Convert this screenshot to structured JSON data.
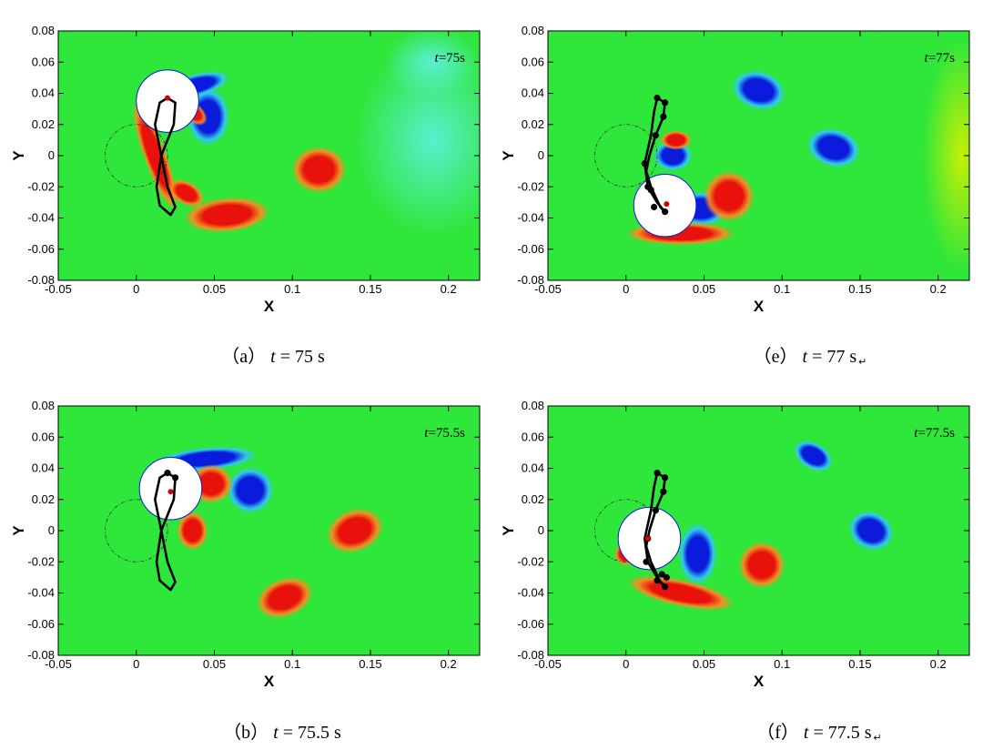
{
  "chart_data": [
    {
      "type": "heatmap",
      "panel_id": "a",
      "caption": {
        "label": "（a）",
        "var": "t",
        "rest": " = 75 s",
        "mark": ""
      },
      "time_label": {
        "var": "t",
        "rest": "=75s"
      },
      "xlabel": "X",
      "ylabel": "Y",
      "xlim": [
        -0.05,
        0.22
      ],
      "ylim": [
        -0.08,
        0.08
      ],
      "x_ticks": [
        "-0.05",
        "0",
        "0.05",
        "0.1",
        "0.15",
        "0.2"
      ],
      "y_ticks": [
        "-0.08",
        "-0.06",
        "-0.04",
        "-0.02",
        "0",
        "0.02",
        "0.04",
        "0.06",
        "0.08"
      ],
      "cylinder": {
        "center": [
          0.02,
          0.035
        ],
        "radius": 0.02
      },
      "reference_circle": {
        "center": [
          0,
          0
        ],
        "radius": 0.02
      },
      "trajectory": [
        [
          0.02,
          0.037
        ],
        [
          0.025,
          0.034
        ],
        [
          0.024,
          0.02
        ],
        [
          0.016,
          0
        ],
        [
          0.02,
          -0.02
        ],
        [
          0.025,
          -0.033
        ],
        [
          0.022,
          -0.038
        ],
        [
          0.015,
          -0.032
        ],
        [
          0.013,
          -0.02
        ],
        [
          0.016,
          0
        ],
        [
          0.012,
          0.02
        ],
        [
          0.015,
          0.034
        ],
        [
          0.02,
          0.037
        ]
      ],
      "markers": [],
      "red_dot": [
        0.02,
        0.037
      ],
      "vortices": [
        {
          "sign": "neg",
          "x": 0.046,
          "y": 0.025,
          "rx": 0.011,
          "ry": 0.015,
          "rot": 0
        },
        {
          "sign": "neg",
          "x": 0.038,
          "y": 0.045,
          "rx": 0.018,
          "ry": 0.006,
          "rot": -15
        },
        {
          "sign": "pos",
          "x": 0.117,
          "y": -0.009,
          "rx": 0.014,
          "ry": 0.012,
          "rot": 0
        },
        {
          "sign": "pos",
          "x": 0.058,
          "y": -0.038,
          "rx": 0.022,
          "ry": 0.009,
          "rot": -5
        },
        {
          "sign": "pos",
          "x": 0.012,
          "y": 0.0,
          "rx": 0.006,
          "ry": 0.03,
          "rot": -20
        },
        {
          "sign": "pos",
          "x": 0.032,
          "y": -0.024,
          "rx": 0.01,
          "ry": 0.006,
          "rot": 30
        },
        {
          "sign": "pos",
          "x": 0.036,
          "y": 0.028,
          "rx": 0.009,
          "ry": 0.005,
          "rot": 40
        },
        {
          "sign": "weakneg",
          "x": 0.19,
          "y": 0.01,
          "rx": 0.04,
          "ry": 0.05,
          "rot": 0
        },
        {
          "sign": "weakneg",
          "x": 0.19,
          "y": 0.06,
          "rx": 0.025,
          "ry": 0.018,
          "rot": 0
        }
      ]
    },
    {
      "type": "heatmap",
      "panel_id": "e",
      "caption": {
        "label": "（e）",
        "var": "t",
        "rest": " = 77 s",
        "mark": "↵"
      },
      "time_label": {
        "var": "t",
        "rest": "=77s"
      },
      "xlabel": "X",
      "ylabel": "Y",
      "xlim": [
        -0.05,
        0.22
      ],
      "ylim": [
        -0.08,
        0.08
      ],
      "x_ticks": [
        "-0.05",
        "0",
        "0.05",
        "0.1",
        "0.15",
        "0.2"
      ],
      "y_ticks": [
        "-0.08",
        "-0.06",
        "-0.04",
        "-0.02",
        "0",
        "0.02",
        "0.04",
        "0.06",
        "0.08"
      ],
      "cylinder": {
        "center": [
          0.025,
          -0.032
        ],
        "radius": 0.02
      },
      "reference_circle": {
        "center": [
          0,
          0
        ],
        "radius": 0.02
      },
      "trajectory": [
        [
          0.02,
          0.037
        ],
        [
          0.025,
          0.034
        ],
        [
          0.024,
          0.025
        ],
        [
          0.019,
          0.013
        ],
        [
          0.015,
          0.0
        ],
        [
          0.013,
          -0.01
        ],
        [
          0.016,
          -0.02
        ],
        [
          0.022,
          -0.033
        ],
        [
          0.025,
          -0.036
        ],
        [
          0.02,
          -0.03
        ],
        [
          0.014,
          -0.02
        ],
        [
          0.012,
          -0.005
        ],
        [
          0.016,
          0.013
        ],
        [
          0.018,
          0.028
        ],
        [
          0.02,
          0.037
        ]
      ],
      "markers": [
        [
          0.02,
          0.037
        ],
        [
          0.025,
          0.034
        ],
        [
          0.024,
          0.025
        ],
        [
          0.019,
          0.013
        ],
        [
          0.012,
          -0.005
        ],
        [
          0.014,
          -0.02
        ],
        [
          0.018,
          -0.033
        ],
        [
          0.025,
          -0.036
        ],
        [
          0.016,
          -0.022
        ]
      ],
      "red_dot": [
        0.026,
        -0.031
      ],
      "vortices": [
        {
          "sign": "neg",
          "x": 0.085,
          "y": 0.042,
          "rx": 0.014,
          "ry": 0.01,
          "rot": 15
        },
        {
          "sign": "neg",
          "x": 0.133,
          "y": 0.005,
          "rx": 0.014,
          "ry": 0.01,
          "rot": 15
        },
        {
          "sign": "neg",
          "x": 0.03,
          "y": 0.0,
          "rx": 0.01,
          "ry": 0.008,
          "rot": 0
        },
        {
          "sign": "neg",
          "x": 0.048,
          "y": -0.034,
          "rx": 0.014,
          "ry": 0.009,
          "rot": 0
        },
        {
          "sign": "pos",
          "x": 0.066,
          "y": -0.026,
          "rx": 0.013,
          "ry": 0.013,
          "rot": 0
        },
        {
          "sign": "pos",
          "x": 0.035,
          "y": -0.05,
          "rx": 0.028,
          "ry": 0.006,
          "rot": 0
        },
        {
          "sign": "pos",
          "x": 0.032,
          "y": 0.01,
          "rx": 0.008,
          "ry": 0.005,
          "rot": 0
        },
        {
          "sign": "weakpos",
          "x": 0.215,
          "y": 0.0,
          "rx": 0.02,
          "ry": 0.06,
          "rot": 0
        }
      ]
    },
    {
      "type": "heatmap",
      "panel_id": "b",
      "caption": {
        "label": "（b）",
        "var": "t",
        "rest": " = 75.5 s",
        "mark": ""
      },
      "time_label": {
        "var": "t",
        "rest": "=75.5s"
      },
      "xlabel": "X",
      "ylabel": "Y",
      "xlim": [
        -0.05,
        0.22
      ],
      "ylim": [
        -0.08,
        0.08
      ],
      "x_ticks": [
        "-0.05",
        "0",
        "0.05",
        "0.1",
        "0.15",
        "0.2"
      ],
      "y_ticks": [
        "-0.08",
        "-0.06",
        "-0.04",
        "-0.02",
        "0",
        "0.02",
        "0.04",
        "0.06",
        "0.08"
      ],
      "cylinder": {
        "center": [
          0.022,
          0.027
        ],
        "radius": 0.02
      },
      "reference_circle": {
        "center": [
          0,
          0
        ],
        "radius": 0.02
      },
      "trajectory": [
        [
          0.02,
          0.037
        ],
        [
          0.025,
          0.034
        ],
        [
          0.024,
          0.02
        ],
        [
          0.016,
          0
        ],
        [
          0.02,
          -0.02
        ],
        [
          0.025,
          -0.033
        ],
        [
          0.022,
          -0.038
        ],
        [
          0.015,
          -0.032
        ],
        [
          0.013,
          -0.02
        ],
        [
          0.016,
          0
        ],
        [
          0.012,
          0.02
        ],
        [
          0.015,
          0.034
        ],
        [
          0.02,
          0.037
        ]
      ],
      "markers": [
        [
          0.02,
          0.037
        ],
        [
          0.025,
          0.034
        ]
      ],
      "red_dot": [
        0.022,
        0.025
      ],
      "vortices": [
        {
          "sign": "neg",
          "x": 0.073,
          "y": 0.026,
          "rx": 0.012,
          "ry": 0.012,
          "rot": 0
        },
        {
          "sign": "neg",
          "x": 0.045,
          "y": 0.046,
          "rx": 0.026,
          "ry": 0.006,
          "rot": -5
        },
        {
          "sign": "pos",
          "x": 0.14,
          "y": 0.0,
          "rx": 0.015,
          "ry": 0.011,
          "rot": -20
        },
        {
          "sign": "pos",
          "x": 0.095,
          "y": -0.043,
          "rx": 0.015,
          "ry": 0.01,
          "rot": -20
        },
        {
          "sign": "pos",
          "x": 0.036,
          "y": 0.0,
          "rx": 0.008,
          "ry": 0.01,
          "rot": 0
        },
        {
          "sign": "pos",
          "x": 0.048,
          "y": 0.03,
          "rx": 0.011,
          "ry": 0.01,
          "rot": 0
        }
      ]
    },
    {
      "type": "heatmap",
      "panel_id": "f",
      "caption": {
        "label": "（f）",
        "var": "t",
        "rest": " = 77.5 s",
        "mark": "↵"
      },
      "time_label": {
        "var": "t",
        "rest": "=77.5s"
      },
      "xlabel": "X",
      "ylabel": "Y",
      "xlim": [
        -0.05,
        0.22
      ],
      "ylim": [
        -0.08,
        0.08
      ],
      "x_ticks": [
        "-0.05",
        "0",
        "0.05",
        "0.1",
        "0.15",
        "0.2"
      ],
      "y_ticks": [
        "-0.08",
        "-0.06",
        "-0.04",
        "-0.02",
        "0",
        "0.02",
        "0.04",
        "0.06",
        "0.08"
      ],
      "cylinder": {
        "center": [
          0.015,
          -0.005
        ],
        "radius": 0.02
      },
      "reference_circle": {
        "center": [
          0,
          0
        ],
        "radius": 0.02
      },
      "trajectory": [
        [
          0.02,
          0.037
        ],
        [
          0.025,
          0.034
        ],
        [
          0.024,
          0.025
        ],
        [
          0.019,
          0.013
        ],
        [
          0.015,
          0.0
        ],
        [
          0.013,
          -0.01
        ],
        [
          0.016,
          -0.02
        ],
        [
          0.022,
          -0.033
        ],
        [
          0.025,
          -0.036
        ],
        [
          0.02,
          -0.03
        ],
        [
          0.014,
          -0.02
        ],
        [
          0.012,
          -0.005
        ],
        [
          0.016,
          0.013
        ],
        [
          0.018,
          0.028
        ],
        [
          0.02,
          0.037
        ]
      ],
      "markers": [
        [
          0.02,
          0.037
        ],
        [
          0.025,
          0.034
        ],
        [
          0.024,
          0.025
        ],
        [
          0.019,
          0.013
        ],
        [
          0.014,
          -0.005
        ],
        [
          0.013,
          -0.02
        ],
        [
          0.02,
          -0.032
        ],
        [
          0.025,
          -0.036
        ],
        [
          0.023,
          -0.028
        ],
        [
          0.026,
          -0.03
        ]
      ],
      "red_dot": [
        0.014,
        -0.005
      ],
      "vortices": [
        {
          "sign": "neg",
          "x": 0.12,
          "y": 0.048,
          "rx": 0.011,
          "ry": 0.007,
          "rot": 30
        },
        {
          "sign": "neg",
          "x": 0.157,
          "y": 0.0,
          "rx": 0.012,
          "ry": 0.01,
          "rot": 25
        },
        {
          "sign": "neg",
          "x": 0.046,
          "y": -0.015,
          "rx": 0.01,
          "ry": 0.016,
          "rot": 0
        },
        {
          "sign": "pos",
          "x": 0.087,
          "y": -0.022,
          "rx": 0.012,
          "ry": 0.012,
          "rot": 0
        },
        {
          "sign": "pos",
          "x": 0.035,
          "y": -0.04,
          "rx": 0.028,
          "ry": 0.007,
          "rot": 12
        },
        {
          "sign": "pos",
          "x": 0.0,
          "y": -0.015,
          "rx": 0.006,
          "ry": 0.006,
          "rot": 0
        }
      ]
    }
  ],
  "colors": {
    "background": "#2fe63a",
    "negative_core": "#0a1bdc",
    "negative_edge": "#33c6ff",
    "negative_weak": "#5ff0e2",
    "positive_core": "#e8110b",
    "positive_edge": "#ff8a22",
    "positive_weak": "#d6f000",
    "cylinder_fill": "#ffffff",
    "trajectory": "#000000",
    "red_dot": "#d40000"
  }
}
